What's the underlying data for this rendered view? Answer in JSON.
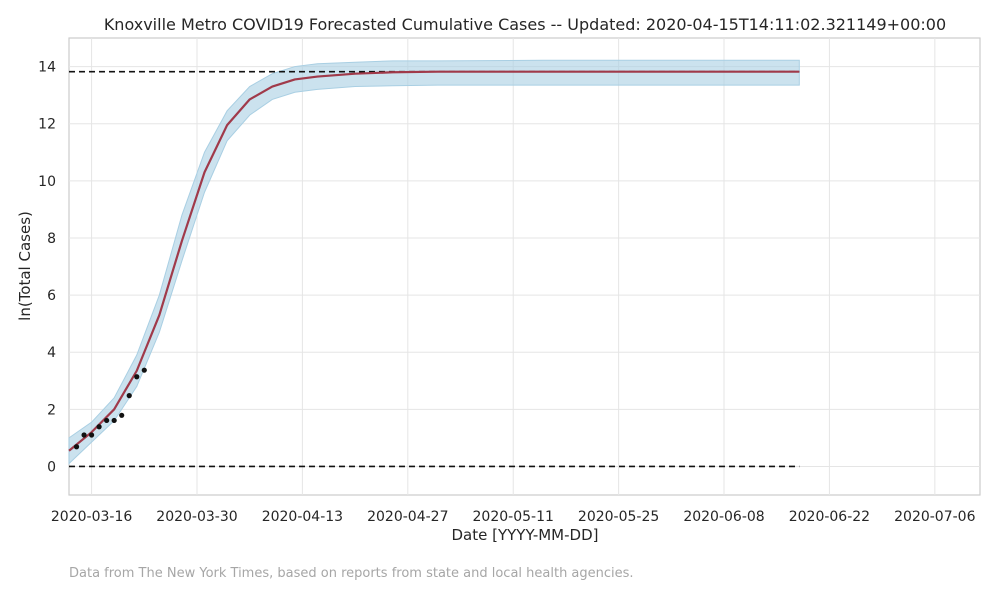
{
  "chart_data": {
    "type": "line",
    "title": "Knoxville Metro COVID19 Forecasted Cumulative Cases -- Updated: 2020-04-15T14:11:02.321149+00:00",
    "xlabel": "Date [YYYY-MM-DD]",
    "ylabel": "ln(Total Cases)",
    "x_type": "date",
    "xlim": [
      "2020-03-13",
      "2020-07-12"
    ],
    "ylim": [
      -1,
      15
    ],
    "x_ticks": [
      "2020-03-16",
      "2020-03-30",
      "2020-04-13",
      "2020-04-27",
      "2020-05-11",
      "2020-05-25",
      "2020-06-08",
      "2020-06-22",
      "2020-07-06"
    ],
    "y_ticks": [
      0,
      2,
      4,
      6,
      8,
      10,
      12,
      14
    ],
    "grid": true,
    "reference_lines": [
      {
        "y": 13.82,
        "from": "2020-03-13",
        "to": "2020-06-18",
        "style": "dashed",
        "color": "#111111"
      },
      {
        "y": 0,
        "from": "2020-03-13",
        "to": "2020-06-18",
        "style": "dashed",
        "color": "#111111"
      }
    ],
    "series": [
      {
        "type": "band",
        "color": "#a9cfe3",
        "x": [
          "2020-03-13",
          "2020-03-16",
          "2020-03-19",
          "2020-03-22",
          "2020-03-25",
          "2020-03-28",
          "2020-03-31",
          "2020-04-03",
          "2020-04-06",
          "2020-04-09",
          "2020-04-12",
          "2020-04-15",
          "2020-04-20",
          "2020-04-25",
          "2020-05-01",
          "2020-05-15",
          "2020-06-01",
          "2020-06-18"
        ],
        "lower": [
          0.1,
          0.85,
          1.6,
          2.8,
          4.7,
          7.2,
          9.6,
          11.4,
          12.3,
          12.85,
          13.1,
          13.2,
          13.3,
          13.33,
          13.35,
          13.35,
          13.35,
          13.35
        ],
        "upper": [
          1.0,
          1.55,
          2.4,
          3.9,
          6.0,
          8.8,
          11.0,
          12.45,
          13.3,
          13.75,
          14.0,
          14.1,
          14.15,
          14.2,
          14.2,
          14.22,
          14.22,
          14.22
        ]
      },
      {
        "type": "line",
        "color": "#a03a4a",
        "x": [
          "2020-03-13",
          "2020-03-16",
          "2020-03-19",
          "2020-03-22",
          "2020-03-25",
          "2020-03-28",
          "2020-03-31",
          "2020-04-03",
          "2020-04-06",
          "2020-04-09",
          "2020-04-12",
          "2020-04-15",
          "2020-04-20",
          "2020-04-25",
          "2020-05-01",
          "2020-05-15",
          "2020-06-01",
          "2020-06-18"
        ],
        "y": [
          0.55,
          1.2,
          2.0,
          3.35,
          5.3,
          7.9,
          10.3,
          11.95,
          12.85,
          13.3,
          13.55,
          13.65,
          13.75,
          13.8,
          13.82,
          13.82,
          13.82,
          13.82
        ]
      },
      {
        "type": "scatter",
        "color": "#111111",
        "x": [
          "2020-03-14",
          "2020-03-15",
          "2020-03-16",
          "2020-03-17",
          "2020-03-18",
          "2020-03-19",
          "2020-03-20",
          "2020-03-21",
          "2020-03-22",
          "2020-03-23"
        ],
        "y": [
          0.69,
          1.1,
          1.1,
          1.39,
          1.61,
          1.61,
          1.79,
          2.48,
          3.14,
          3.37
        ]
      }
    ]
  },
  "footnote": "Data from The New York Times, based on reports from state and local health agencies."
}
